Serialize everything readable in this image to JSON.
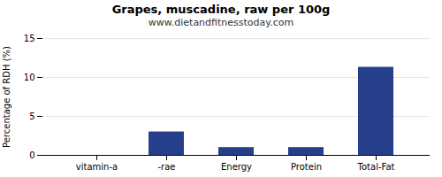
{
  "chart_data": {
    "type": "bar",
    "title": "Grapes, muscadine, raw per 100g",
    "subtitle": "www.dietandfitnesstoday.com",
    "categories": [
      "vitamin-a",
      "-rae",
      "Energy",
      "Protein",
      "Total-Fat"
    ],
    "values": [
      0,
      3.0,
      1.0,
      1.0,
      11.3
    ],
    "color": "#253f8a",
    "ylabel": "Percentage of RDH (%)",
    "ylim": [
      0,
      15
    ],
    "yticks": [
      0,
      5,
      10,
      15
    ],
    "grid": true
  }
}
